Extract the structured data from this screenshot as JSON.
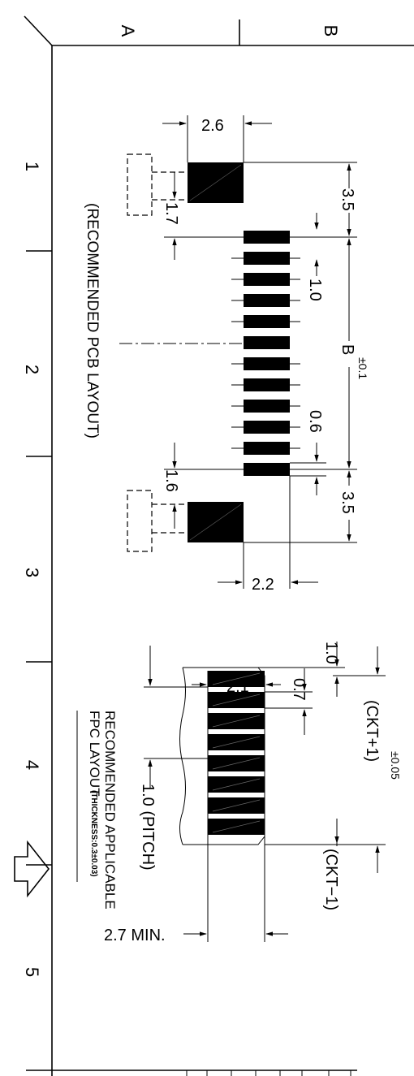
{
  "zones": {
    "col_a": "A",
    "col_b": "B",
    "rows": [
      "1",
      "2",
      "3",
      "4",
      "5"
    ]
  },
  "pcb": {
    "title": "(RECOMMENDED PCB LAYOUT)",
    "dim_pad_width": "2.6",
    "dim_top_offset": "1.7",
    "dim_bottom_offset": "1.6",
    "dim_bottom_width": "2.2",
    "dim_edge_top": "3.5",
    "dim_edge_bottom": "3.5",
    "dim_pitch": "1.0",
    "dim_pad": "0.6",
    "dim_b": "B",
    "dim_b_tol": "±0.1"
  },
  "fpc": {
    "title_line1": "RECOMMENDED APPLICABLE",
    "title_line2": "FPC LAYOUT",
    "thickness": "(THICKNESS:0.3±0.03)",
    "dim_width": "2.1",
    "dim_gap": "0.7",
    "dim_edge": "1.0",
    "dim_ckt_plus": "(CKT+1)",
    "dim_ckt_tol": "±0.05",
    "dim_ckt_minus": "(CKT−1)",
    "dim_pitch": "1.0  (PITCH)",
    "dim_min": "2.7  MIN."
  }
}
